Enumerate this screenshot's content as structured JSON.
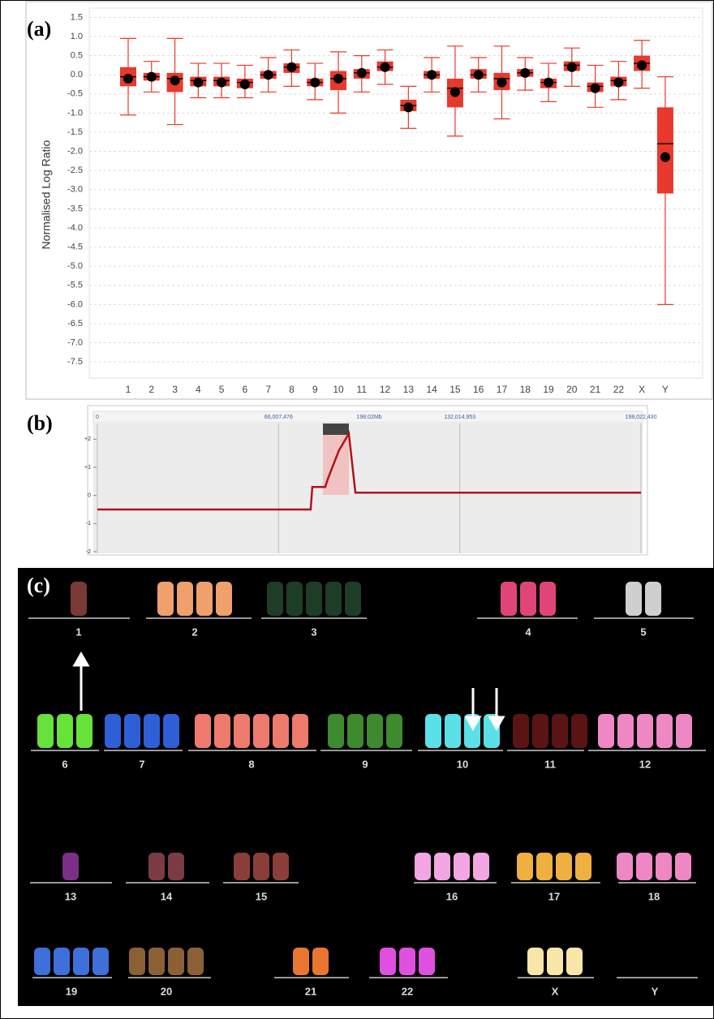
{
  "panel_labels": [
    "(a)",
    "(b)",
    "(c)"
  ],
  "chart_data": [
    {
      "type": "box",
      "y_label": "Normalised Log Ratio",
      "color": "#e8392c",
      "categories": [
        "1",
        "2",
        "3",
        "4",
        "5",
        "6",
        "7",
        "8",
        "9",
        "10",
        "11",
        "12",
        "13",
        "14",
        "15",
        "16",
        "17",
        "18",
        "19",
        "20",
        "21",
        "22",
        "X",
        "Y"
      ],
      "whisker_high": [
        0.95,
        0.35,
        0.95,
        0.3,
        0.3,
        0.25,
        0.45,
        0.65,
        0.3,
        0.6,
        0.5,
        0.65,
        -0.3,
        0.45,
        0.75,
        0.45,
        0.75,
        0.45,
        0.3,
        0.7,
        0.25,
        0.35,
        0.9,
        -0.05
      ],
      "q3": [
        0.2,
        0.05,
        0.05,
        -0.05,
        -0.05,
        -0.1,
        0.1,
        0.3,
        -0.1,
        0.1,
        0.15,
        0.35,
        -0.65,
        0.1,
        -0.1,
        0.15,
        0.05,
        0.15,
        -0.1,
        0.35,
        -0.2,
        -0.05,
        0.5,
        -0.85
      ],
      "median": [
        -0.05,
        -0.05,
        -0.1,
        -0.15,
        -0.15,
        -0.2,
        0,
        0.2,
        -0.2,
        -0.1,
        0.05,
        0.2,
        -0.8,
        0,
        -0.35,
        0,
        -0.1,
        0.05,
        -0.2,
        0.25,
        -0.3,
        -0.15,
        0.3,
        -1.8
      ],
      "q1": [
        -0.3,
        -0.15,
        -0.45,
        -0.3,
        -0.3,
        -0.35,
        -0.1,
        0.05,
        -0.3,
        -0.4,
        -0.1,
        0.1,
        -0.95,
        -0.1,
        -0.85,
        -0.1,
        -0.4,
        -0.05,
        -0.35,
        0.1,
        -0.45,
        -0.3,
        0.1,
        -3.1
      ],
      "whisker_low": [
        -1.05,
        -0.45,
        -1.3,
        -0.6,
        -0.6,
        -0.6,
        -0.45,
        -0.3,
        -0.65,
        -1.0,
        -0.45,
        -0.25,
        -1.4,
        -0.45,
        -1.6,
        -0.45,
        -1.15,
        -0.4,
        -0.7,
        -0.3,
        -0.85,
        -0.65,
        -0.35,
        -6.0
      ],
      "mean": [
        -0.1,
        -0.05,
        -0.15,
        -0.2,
        -0.2,
        -0.25,
        0,
        0.2,
        -0.2,
        -0.1,
        0.05,
        0.2,
        -0.85,
        0,
        -0.45,
        0,
        -0.2,
        0.05,
        -0.2,
        0.2,
        -0.35,
        -0.2,
        0.25,
        -2.15
      ],
      "ylim": [
        -7.9,
        1.7
      ],
      "yticks": [
        1.5,
        {
          "value": 1,
          "label": "1.0"
        },
        0.5,
        {
          "value": 0,
          "label": "0.0"
        },
        -0.5,
        {
          "value": -1,
          "label": "-1.0"
        },
        -1.5,
        {
          "value": -2,
          "label": "-2.0"
        },
        -2.5,
        {
          "value": -3,
          "label": "-3.0"
        },
        -3.5,
        {
          "value": -4,
          "label": "-4.0"
        },
        -4.5,
        {
          "value": -5,
          "label": "-5.0"
        },
        -5.5,
        {
          "value": -6,
          "label": "-6.0"
        },
        -6.5,
        {
          "value": -7,
          "label": "-7.0"
        },
        -7.5
      ],
      "grid": true
    },
    {
      "type": "line",
      "color": "#b0141a",
      "annotation": "198.02Mb",
      "x": [
        0,
        77700000,
        78300000,
        83000000,
        84000000,
        88000000,
        91600000,
        94000000,
        198022430
      ],
      "values": [
        -0.5,
        -0.5,
        0.3,
        0.3,
        0.6,
        1.6,
        2.2,
        0.1,
        0.1
      ],
      "xlim": [
        0,
        198022430
      ],
      "xticks": [
        0,
        {
          "value": 66007476,
          "label": "66,007,476"
        },
        {
          "value": 132014953,
          "label": "132,014,953"
        },
        {
          "value": 198022430,
          "label": "198,022,430"
        }
      ],
      "ylim": [
        -2,
        2.5
      ],
      "yticks": [
        {
          "value": 2,
          "label": "+2"
        },
        {
          "value": 1,
          "label": "+1"
        },
        0,
        -1,
        -2
      ]
    }
  ],
  "karyotype": {
    "labels": [
      "1",
      "2",
      "3",
      "4",
      "5",
      "6",
      "7",
      "8",
      "9",
      "10",
      "11",
      "12",
      "13",
      "14",
      "15",
      "16",
      "17",
      "18",
      "19",
      "20",
      "21",
      "22",
      "X",
      "Y"
    ]
  }
}
